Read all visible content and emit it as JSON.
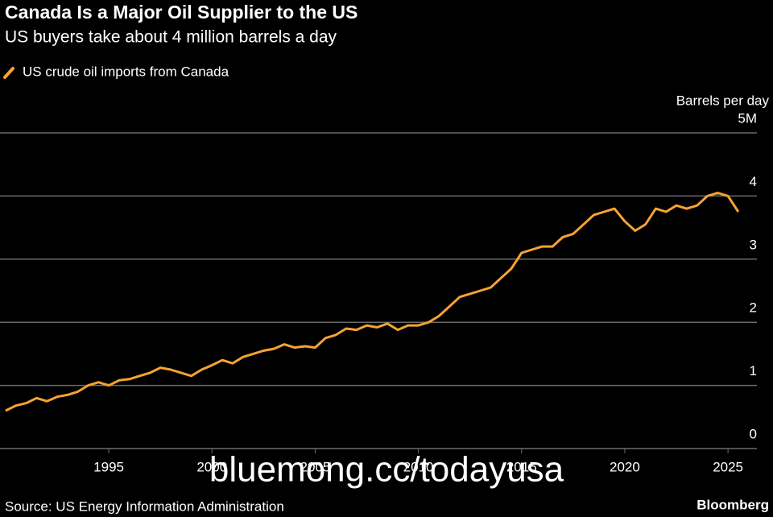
{
  "chart_data": {
    "type": "line",
    "title": "Canada Is a Major Oil Supplier to the US",
    "subtitle": "US buyers take about 4 million barrels a day",
    "y_label": "Barrels per day",
    "source": "Source: US Energy Information Administration",
    "brand": "Bloomberg",
    "watermark": "bluemong.cc/todayusa",
    "grid": true,
    "xlim": [
      1989.73,
      2026.4
    ],
    "xticks": [
      1995,
      2000,
      2005,
      2010,
      2015,
      2020,
      2025
    ],
    "ylim": [
      0,
      5
    ],
    "yticks": [
      0,
      1,
      2,
      3,
      4,
      {
        "value": 5,
        "label": "5M"
      }
    ],
    "x": [
      1990,
      1990.5,
      1991,
      1991.5,
      1992,
      1992.5,
      1993,
      1993.5,
      1994,
      1994.5,
      1995,
      1995.5,
      1996,
      1996.5,
      1997,
      1997.5,
      1998,
      1998.5,
      1999,
      1999.5,
      2000,
      2000.5,
      2001,
      2001.5,
      2002,
      2002.5,
      2003,
      2003.5,
      2004,
      2004.5,
      2005,
      2005.5,
      2006,
      2006.5,
      2007,
      2007.5,
      2008,
      2008.5,
      2009,
      2009.5,
      2010,
      2010.5,
      2011,
      2011.5,
      2012,
      2012.5,
      2013,
      2013.5,
      2014,
      2014.5,
      2015,
      2015.5,
      2016,
      2016.5,
      2017,
      2017.5,
      2018,
      2018.5,
      2019,
      2019.5,
      2020,
      2020.5,
      2021,
      2021.5,
      2022,
      2022.5,
      2023,
      2023.5,
      2024,
      2024.5,
      2025,
      2025.5
    ],
    "series": [
      {
        "name": "US crude oil imports from Canada",
        "color": "#f7a233",
        "values": [
          0.6,
          0.68,
          0.72,
          0.8,
          0.75,
          0.82,
          0.85,
          0.9,
          1.0,
          1.05,
          1.0,
          1.08,
          1.1,
          1.15,
          1.2,
          1.28,
          1.25,
          1.2,
          1.15,
          1.25,
          1.32,
          1.4,
          1.35,
          1.45,
          1.5,
          1.55,
          1.58,
          1.65,
          1.6,
          1.62,
          1.6,
          1.75,
          1.8,
          1.9,
          1.88,
          1.95,
          1.92,
          1.98,
          1.88,
          1.95,
          1.95,
          2.0,
          2.1,
          2.25,
          2.4,
          2.45,
          2.5,
          2.55,
          2.7,
          2.85,
          3.1,
          3.15,
          3.2,
          3.2,
          3.35,
          3.4,
          3.55,
          3.7,
          3.75,
          3.8,
          3.6,
          3.45,
          3.55,
          3.8,
          3.75,
          3.85,
          3.8,
          3.85,
          4.0,
          4.05,
          4.0,
          3.75
        ]
      }
    ]
  }
}
